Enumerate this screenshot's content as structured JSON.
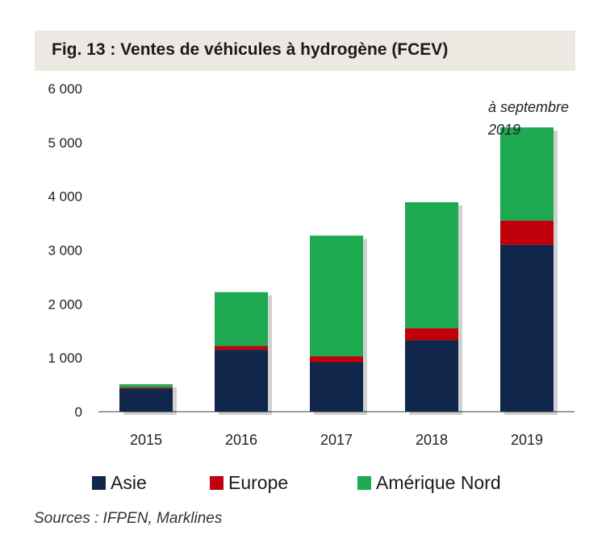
{
  "chart_data": {
    "type": "bar",
    "stacked": true,
    "title": "Fig. 13 : Ventes de véhicules à hydrogène (FCEV)",
    "categories": [
      "2015",
      "2016",
      "2017",
      "2018",
      "2019"
    ],
    "series": [
      {
        "name": "Asie",
        "color": "#10264a",
        "values": [
          430,
          1150,
          920,
          1330,
          3100
        ]
      },
      {
        "name": "Europe",
        "color": "#c0000b",
        "values": [
          20,
          70,
          110,
          220,
          450
        ]
      },
      {
        "name": "Amérique Nord",
        "color": "#1daa50",
        "values": [
          60,
          1000,
          2240,
          2340,
          1730
        ]
      }
    ],
    "ylim": [
      0,
      6000
    ],
    "yticks": [
      0,
      1000,
      2000,
      3000,
      4000,
      5000,
      6000
    ],
    "ytick_labels": [
      "0",
      "1 000",
      "2 000",
      "3 000",
      "4 000",
      "5 000",
      "6 000"
    ],
    "annotation": {
      "lines": [
        "à septembre",
        "2019"
      ],
      "category": "2019"
    },
    "grid": false,
    "legend_position": "bottom"
  },
  "source": "Sources : IFPEN, Marklines"
}
